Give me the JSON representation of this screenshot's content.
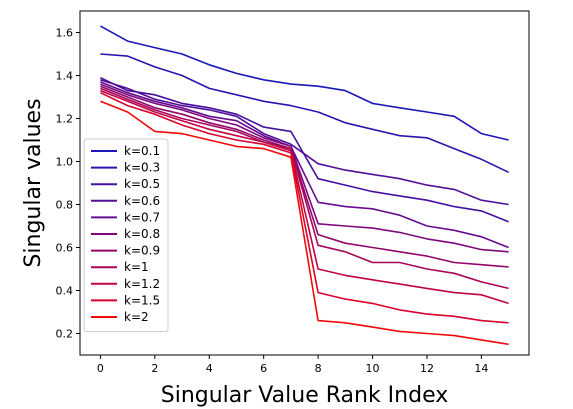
{
  "chart_data": {
    "type": "line",
    "title": "",
    "xlabel": "Singular Value Rank Index",
    "ylabel": "Singular values",
    "xlim": [
      -0.75,
      15.75
    ],
    "ylim": [
      0.1,
      1.7
    ],
    "xticks": [
      0,
      2,
      4,
      6,
      8,
      10,
      12,
      14
    ],
    "yticks": [
      0.2,
      0.4,
      0.6,
      0.8,
      1.0,
      1.2,
      1.4,
      1.6
    ],
    "xtick_labels": [
      "0",
      "2",
      "4",
      "6",
      "8",
      "10",
      "12",
      "14"
    ],
    "ytick_labels": [
      "0.2",
      "0.4",
      "0.6",
      "0.8",
      "1.0",
      "1.2",
      "1.4",
      "1.6"
    ],
    "grid": false,
    "legend_position": "center-left",
    "x": [
      0,
      1,
      2,
      3,
      4,
      5,
      6,
      7,
      8,
      9,
      10,
      11,
      12,
      13,
      14,
      15
    ],
    "series": [
      {
        "name": "k=0.1",
        "color": "#1b17b8",
        "values": [
          1.63,
          1.56,
          1.53,
          1.5,
          1.45,
          1.41,
          1.38,
          1.36,
          1.35,
          1.33,
          1.27,
          1.25,
          1.23,
          1.21,
          1.13,
          1.1
        ]
      },
      {
        "name": "k=0.3",
        "color": "#2e12ad",
        "values": [
          1.5,
          1.49,
          1.44,
          1.4,
          1.34,
          1.31,
          1.28,
          1.26,
          1.23,
          1.18,
          1.15,
          1.12,
          1.11,
          1.06,
          1.01,
          0.95
        ]
      },
      {
        "name": "k=0.5",
        "color": "#46109e",
        "values": [
          1.39,
          1.33,
          1.31,
          1.27,
          1.25,
          1.22,
          1.16,
          1.14,
          0.92,
          0.89,
          0.86,
          0.84,
          0.82,
          0.79,
          0.77,
          0.72
        ]
      },
      {
        "name": "k=0.6",
        "color": "#54109a",
        "values": [
          1.38,
          1.34,
          1.29,
          1.26,
          1.24,
          1.21,
          1.13,
          1.08,
          0.99,
          0.96,
          0.94,
          0.92,
          0.89,
          0.87,
          0.82,
          0.8
        ]
      },
      {
        "name": "k=0.7",
        "color": "#660c8e",
        "values": [
          1.37,
          1.32,
          1.28,
          1.25,
          1.21,
          1.19,
          1.12,
          1.07,
          0.81,
          0.79,
          0.78,
          0.75,
          0.7,
          0.68,
          0.65,
          0.6
        ]
      },
      {
        "name": "k=0.8",
        "color": "#7d097d",
        "values": [
          1.36,
          1.31,
          1.27,
          1.24,
          1.2,
          1.17,
          1.11,
          1.07,
          0.71,
          0.7,
          0.69,
          0.67,
          0.64,
          0.62,
          0.59,
          0.58
        ]
      },
      {
        "name": "k=0.9",
        "color": "#92076a",
        "values": [
          1.35,
          1.3,
          1.25,
          1.22,
          1.18,
          1.15,
          1.1,
          1.06,
          0.66,
          0.62,
          0.6,
          0.58,
          0.56,
          0.53,
          0.52,
          0.51
        ]
      },
      {
        "name": "k=1",
        "color": "#a8065a",
        "values": [
          1.34,
          1.29,
          1.24,
          1.2,
          1.17,
          1.14,
          1.09,
          1.06,
          0.61,
          0.58,
          0.53,
          0.53,
          0.5,
          0.48,
          0.44,
          0.41
        ]
      },
      {
        "name": "k=1.2",
        "color": "#c00444",
        "values": [
          1.33,
          1.28,
          1.23,
          1.19,
          1.15,
          1.12,
          1.09,
          1.05,
          0.5,
          0.47,
          0.45,
          0.43,
          0.41,
          0.39,
          0.38,
          0.34
        ]
      },
      {
        "name": "k=1.5",
        "color": "#d8032c",
        "values": [
          1.32,
          1.26,
          1.22,
          1.17,
          1.13,
          1.1,
          1.08,
          1.04,
          0.39,
          0.36,
          0.34,
          0.31,
          0.29,
          0.28,
          0.26,
          0.25
        ]
      },
      {
        "name": "k=2",
        "color": "#f00a0a",
        "values": [
          1.28,
          1.23,
          1.14,
          1.13,
          1.1,
          1.07,
          1.06,
          1.02,
          0.26,
          0.25,
          0.23,
          0.21,
          0.2,
          0.19,
          0.17,
          0.15
        ]
      }
    ]
  }
}
